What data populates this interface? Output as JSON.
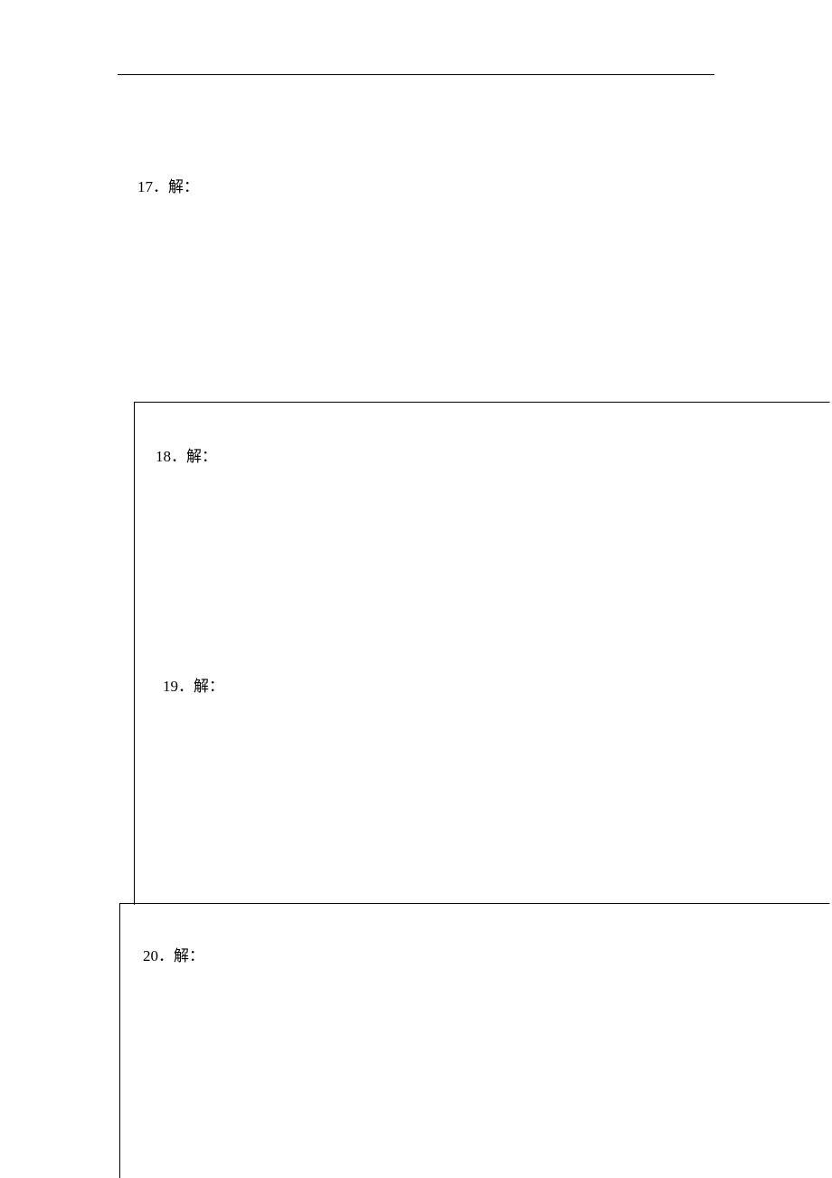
{
  "questions": {
    "q17": "17．解：",
    "q18": "18．解：",
    "q19": "19．解：",
    "q20": "20．解："
  }
}
